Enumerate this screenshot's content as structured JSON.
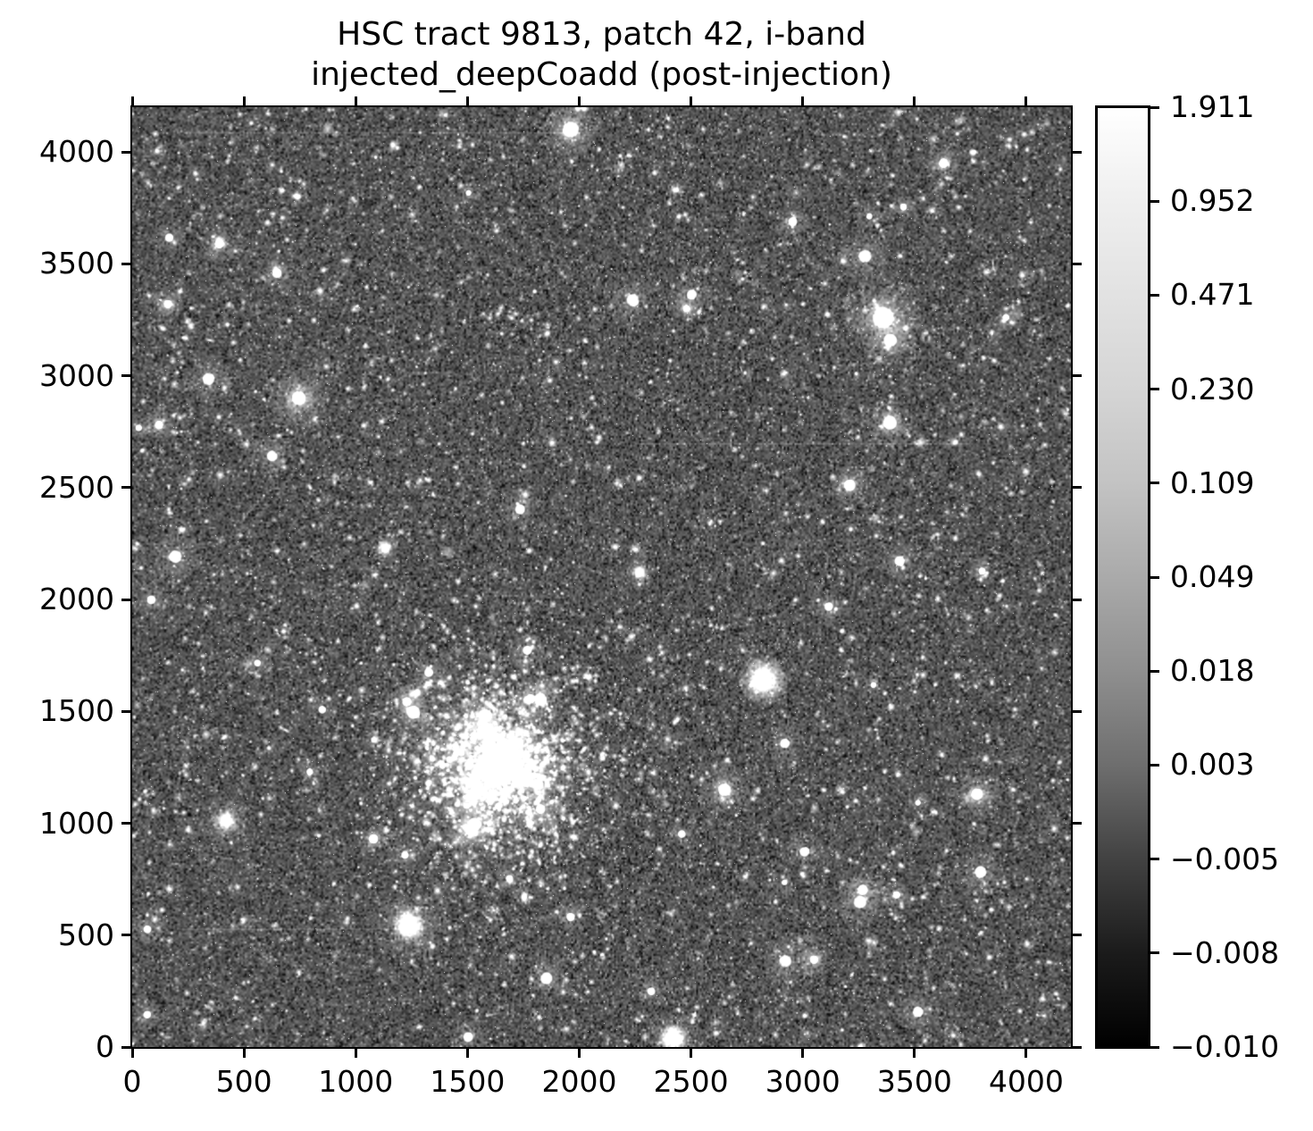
{
  "title": {
    "line1": "HSC tract 9813, patch 42, i-band",
    "line2": "injected_deepCoadd (post-injection)"
  },
  "chart_data": {
    "type": "heatmap",
    "title": "HSC tract 9813, patch 42, i-band\ninjected_deepCoadd (post-injection)",
    "image_kind": "grayscale astronomical coadded sky image: dense field of stars and galaxies on noisy dark background, asinh-stretched",
    "xlim": [
      0,
      4200
    ],
    "ylim": [
      0,
      4200
    ],
    "x_ticks": [
      0,
      500,
      1000,
      1500,
      2000,
      2500,
      3000,
      3500,
      4000
    ],
    "y_ticks": [
      0,
      500,
      1000,
      1500,
      2000,
      2500,
      3000,
      3500,
      4000
    ],
    "grid": false,
    "legend": null,
    "colormap": "greys (black = low flux, white = high flux)",
    "colorbar": {
      "position": "right",
      "vmax": 1.911,
      "vmin": -0.01,
      "stretch": "asinh/log (ticks evenly spaced along bar)",
      "tick_labels": [
        "1.911",
        "0.952",
        "0.471",
        "0.230",
        "0.109",
        "0.049",
        "0.018",
        "0.003",
        "−0.005",
        "−0.008",
        "−0.010"
      ]
    },
    "bright_sources": [
      {
        "x": 1624,
        "y": 1240,
        "kind": "galaxy-halo",
        "core": 26,
        "halo": 390
      },
      {
        "x": 3360,
        "y": 3260,
        "kind": "star",
        "core": 40,
        "halo": 200
      },
      {
        "x": 745,
        "y": 2900,
        "kind": "star",
        "core": 26,
        "halo": 150
      },
      {
        "x": 2824,
        "y": 1642,
        "kind": "galaxy",
        "core": 48,
        "halo": 120
      },
      {
        "x": 3390,
        "y": 2790,
        "kind": "star",
        "core": 26,
        "halo": 115
      },
      {
        "x": 3210,
        "y": 2510,
        "kind": "star",
        "core": 22,
        "halo": 95
      },
      {
        "x": 1240,
        "y": 545,
        "kind": "galaxy",
        "core": 30,
        "halo": 170
      },
      {
        "x": 2650,
        "y": 1150,
        "kind": "star",
        "core": 24,
        "halo": 115
      },
      {
        "x": 3780,
        "y": 1130,
        "kind": "star",
        "core": 22,
        "halo": 115
      },
      {
        "x": 1962,
        "y": 4100,
        "kind": "star",
        "core": 30,
        "halo": 140
      },
      {
        "x": 3630,
        "y": 3950,
        "kind": "star",
        "core": 18,
        "halo": 85
      },
      {
        "x": 390,
        "y": 3590,
        "kind": "star",
        "core": 18,
        "halo": 85
      },
      {
        "x": 2420,
        "y": 40,
        "kind": "galaxy",
        "core": 28,
        "halo": 130
      },
      {
        "x": 160,
        "y": 3320,
        "kind": "star",
        "core": 16,
        "halo": 75
      },
      {
        "x": 120,
        "y": 2780,
        "kind": "star",
        "core": 16,
        "halo": 75
      },
      {
        "x": 3050,
        "y": 390,
        "kind": "star",
        "core": 16,
        "halo": 85
      },
      {
        "x": 2270,
        "y": 2120,
        "kind": "galaxy",
        "core": 14,
        "halo": 75
      },
      {
        "x": 420,
        "y": 1010,
        "kind": "galaxy",
        "core": 16,
        "halo": 130
      },
      {
        "x": 1080,
        "y": 930,
        "kind": "star",
        "core": 18,
        "halo": 75
      },
      {
        "x": 2480,
        "y": 3300,
        "kind": "star",
        "core": 14,
        "halo": 65
      },
      {
        "x": 1130,
        "y": 2230,
        "kind": "galaxy",
        "core": 14,
        "halo": 80
      },
      {
        "x": 3420,
        "y": 680,
        "kind": "star",
        "core": 14,
        "halo": 60
      }
    ],
    "field": {
      "seed": 9813,
      "background_mean": 0.34,
      "background_noise": 0.09,
      "dark_speckle_fraction": 0.09,
      "hot_pixels": 1200,
      "faint_stars": 4200,
      "medium_stars": 420,
      "bright_stars": 64,
      "faint_galaxies": 200,
      "cluster_center": [
        1650,
        1250
      ],
      "cluster_sigma": 1150,
      "cluster_fraction": 0.35
    }
  },
  "colors": {
    "text": "#000000",
    "background": "#ffffff",
    "axis": "#000000",
    "cbar_stops": [
      "#ffffff",
      "#efefef",
      "#e2e2e2",
      "#d5d5d5",
      "#c3c3c3",
      "#aaaaaa",
      "#8f8f8f",
      "#6e6e6e",
      "#424242",
      "#1b1b1b",
      "#000000"
    ]
  }
}
